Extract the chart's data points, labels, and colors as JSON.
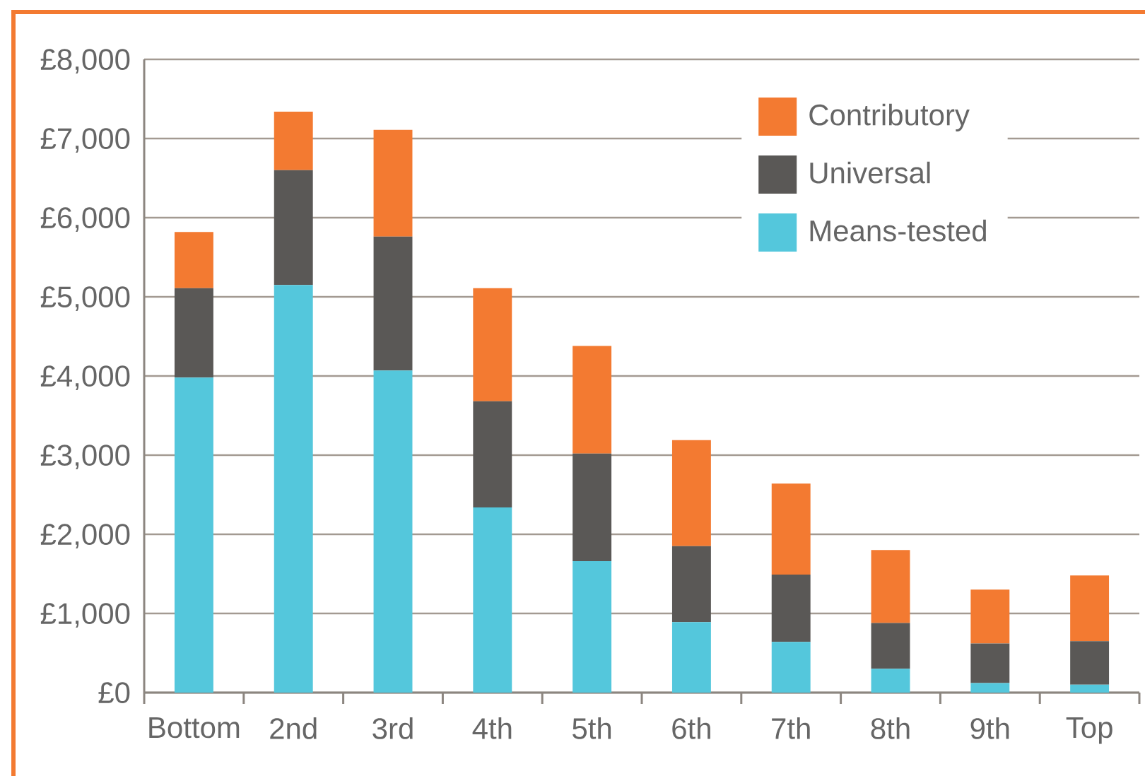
{
  "chart_data": {
    "type": "bar",
    "stacked": true,
    "categories": [
      "Bottom",
      "2nd",
      "3rd",
      "4th",
      "5th",
      "6th",
      "7th",
      "8th",
      "9th",
      "Top"
    ],
    "series": [
      {
        "name": "Means-tested",
        "color": "#54c7dc",
        "values": [
          3980,
          5150,
          4070,
          2340,
          1660,
          890,
          640,
          300,
          120,
          100
        ]
      },
      {
        "name": "Universal",
        "color": "#5a5856",
        "values": [
          1130,
          1450,
          1690,
          1340,
          1360,
          960,
          850,
          580,
          500,
          550
        ]
      },
      {
        "name": "Contributory",
        "color": "#f37a31",
        "values": [
          710,
          740,
          1350,
          1430,
          1360,
          1340,
          1150,
          920,
          680,
          830
        ]
      }
    ],
    "ylim": [
      0,
      8000
    ],
    "yticks": [
      {
        "value": 0,
        "label": "£0"
      },
      {
        "value": 1000,
        "label": "£1,000"
      },
      {
        "value": 2000,
        "label": "£2,000"
      },
      {
        "value": 3000,
        "label": "£3,000"
      },
      {
        "value": 4000,
        "label": "£4,000"
      },
      {
        "value": 5000,
        "label": "£5,000"
      },
      {
        "value": 6000,
        "label": "£6,000"
      },
      {
        "value": 7000,
        "label": "£7,000"
      },
      {
        "value": 8000,
        "label": "£8,000"
      }
    ],
    "grid": "y",
    "legend": "top right"
  }
}
